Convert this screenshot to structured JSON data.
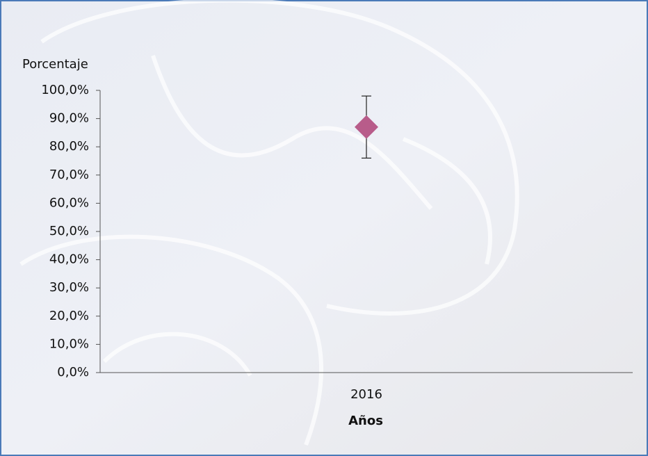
{
  "chart_data": {
    "type": "errorbar",
    "y_label": "Porcentaje",
    "x_label": "Años",
    "categories": [
      "2016"
    ],
    "series": [
      {
        "color": "#b85c8a",
        "values": [
          87
        ],
        "errors": [
          11
        ]
      }
    ],
    "ylim": [
      0,
      100
    ],
    "yticks": [
      {
        "value": 0,
        "label": "0,0%"
      },
      {
        "value": 10,
        "label": "10,0%"
      },
      {
        "value": 20,
        "label": "20,0%"
      },
      {
        "value": 30,
        "label": "30,0%"
      },
      {
        "value": 40,
        "label": "40,0%"
      },
      {
        "value": 50,
        "label": "50,0%"
      },
      {
        "value": 60,
        "label": "60,0%"
      },
      {
        "value": 70,
        "label": "70,0%"
      },
      {
        "value": 80,
        "label": "80,0%"
      },
      {
        "value": 90,
        "label": "90,0%"
      },
      {
        "value": 100,
        "label": "100,0%"
      }
    ],
    "grid": false
  }
}
